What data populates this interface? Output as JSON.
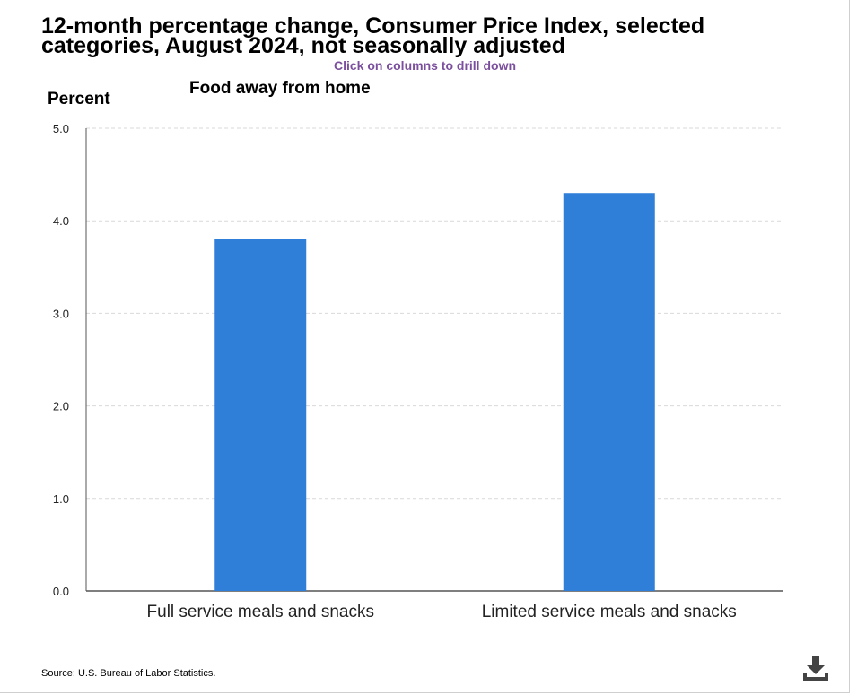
{
  "header": {
    "title": "12-month percentage change, Consumer Price Index, selected categories, August 2024, not seasonally adjusted",
    "hint": "Click on columns to drill down"
  },
  "chart_data": {
    "type": "bar",
    "title": "Food away from home",
    "ylabel": "Percent",
    "xlabel": "",
    "categories": [
      "Full service meals and snacks",
      "Limited service meals and snacks"
    ],
    "values": [
      3.8,
      4.3
    ],
    "ylim": [
      0,
      5
    ],
    "yticks": [
      "0.0",
      "1.0",
      "2.0",
      "3.0",
      "4.0",
      "5.0"
    ],
    "grid": true,
    "bar_color": "#2f7ed8",
    "legend": "none"
  },
  "footer": {
    "source": "Source: U.S. Bureau of Labor Statistics."
  },
  "icons": {
    "download": "download-icon"
  }
}
